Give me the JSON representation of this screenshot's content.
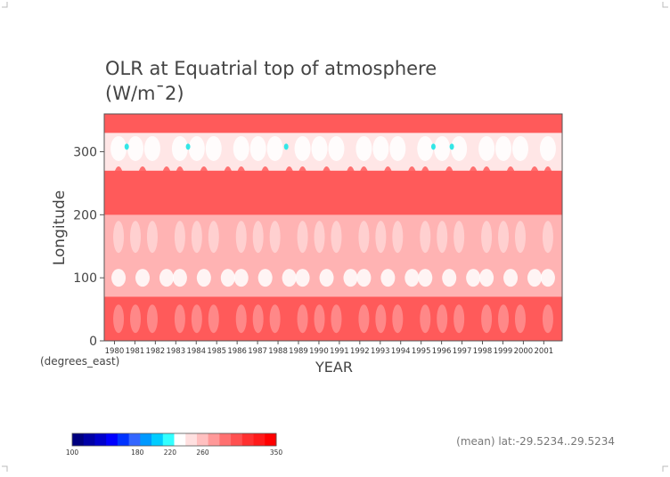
{
  "chart_data": {
    "type": "heatmap",
    "title": "OLR at Equatrial top of atmosphere",
    "subtitle": "(W/m¯2)",
    "xlabel": "YEAR",
    "ylabel": "Longitude",
    "yunits": "(degrees_east)",
    "footnote": "(mean) lat:-29.5234..29.5234",
    "xlim": [
      1979.5,
      2001.9
    ],
    "ylim": [
      0,
      360
    ],
    "xticks": [
      "1980",
      "1981",
      "1982",
      "1983",
      "1984",
      "1985",
      "1986",
      "1987",
      "1988",
      "1989",
      "1990",
      "1991",
      "1992",
      "1993",
      "1994",
      "1995",
      "1996",
      "1997",
      "1998",
      "1999",
      "2000",
      "2001"
    ],
    "yticks": [
      0,
      100,
      200,
      300
    ],
    "colorbar": {
      "labels": [
        "100",
        "180",
        "220",
        "260",
        "350"
      ],
      "colors": [
        "#00007f",
        "#0000a6",
        "#0000cc",
        "#0000ff",
        "#0033ff",
        "#3366ff",
        "#0099ff",
        "#00ccff",
        "#33ffff",
        "#ffffff",
        "#ffe0e0",
        "#ffc0c0",
        "#ff9999",
        "#ff7070",
        "#ff5050",
        "#ff3030",
        "#ff1a1a",
        "#ff0000"
      ]
    },
    "bands": [
      {
        "lat_from": 0,
        "lat_to": 70,
        "mean_olr": 265
      },
      {
        "lat_from": 70,
        "lat_to": 120,
        "mean_olr": 235
      },
      {
        "lat_from": 120,
        "lat_to": 200,
        "mean_olr": 245
      },
      {
        "lat_from": 200,
        "lat_to": 270,
        "mean_olr": 265
      },
      {
        "lat_from": 270,
        "lat_to": 330,
        "mean_olr": 225
      },
      {
        "lat_from": 330,
        "lat_to": 360,
        "mean_olr": 270
      }
    ]
  }
}
